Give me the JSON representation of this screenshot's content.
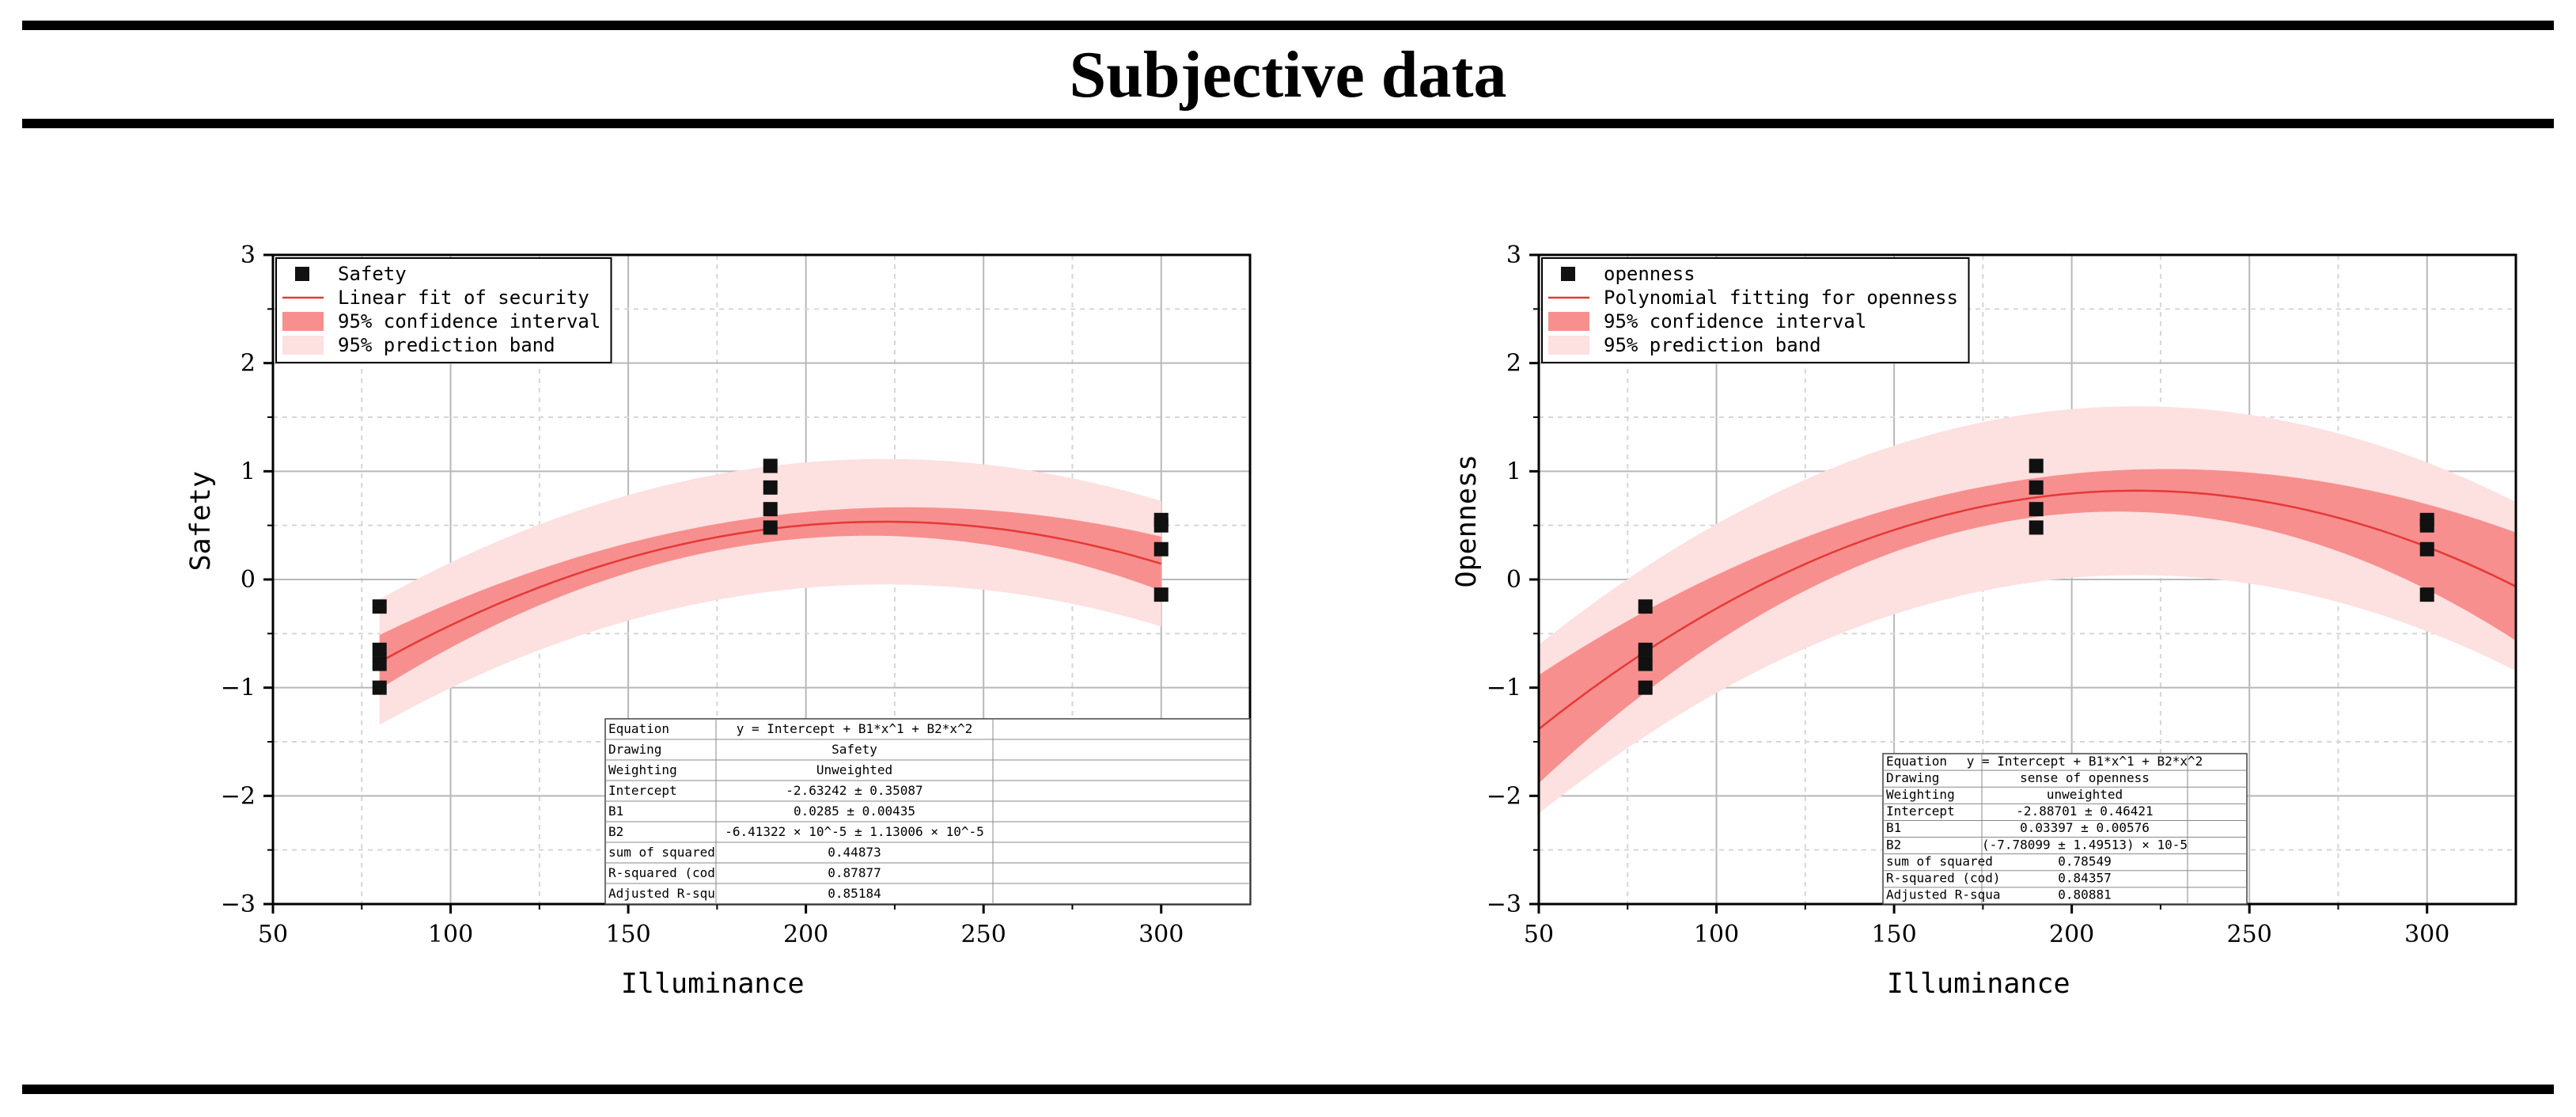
{
  "page": {
    "title": "Subjective data"
  },
  "chart_data": [
    {
      "type": "scatter",
      "name": "safety",
      "xlabel": "Illuminance",
      "ylabel": "Safety",
      "xlim": [
        50,
        325
      ],
      "ylim": [
        -3,
        3
      ],
      "xticks": [
        50,
        100,
        150,
        200,
        250,
        300
      ],
      "yticks": [
        -3,
        -2,
        -1,
        0,
        1,
        2,
        3
      ],
      "grid": true,
      "fit": {
        "b0": -2.63242,
        "b1": 0.0285,
        "b2": -6.41322e-05,
        "x_range": [
          80,
          300
        ]
      },
      "ci_band": {
        "width_min": 0.12,
        "width_max": 0.25,
        "color": "#f78f8f"
      },
      "pred_band": {
        "width": 0.58,
        "color": "#fde0e0"
      },
      "points": [
        {
          "x": 80,
          "y": -0.25
        },
        {
          "x": 80,
          "y": -0.65
        },
        {
          "x": 80,
          "y": -0.78
        },
        {
          "x": 80,
          "y": -1.0
        },
        {
          "x": 190,
          "y": 1.05
        },
        {
          "x": 190,
          "y": 0.85
        },
        {
          "x": 190,
          "y": 0.65
        },
        {
          "x": 190,
          "y": 0.48
        },
        {
          "x": 300,
          "y": 0.55
        },
        {
          "x": 300,
          "y": 0.5
        },
        {
          "x": 300,
          "y": 0.28
        },
        {
          "x": 300,
          "y": -0.14
        }
      ],
      "legend": {
        "position": "top-left",
        "items": [
          {
            "kind": "marker",
            "label": "Safety"
          },
          {
            "kind": "line",
            "label": "Linear fit of security",
            "color": "#e53935"
          },
          {
            "kind": "fill",
            "label": "95% confidence interval",
            "color": "#f78f8f"
          },
          {
            "kind": "fill",
            "label": "95% prediction band",
            "color": "#fde0e0"
          }
        ]
      },
      "stats_table": {
        "rows": [
          {
            "key": "Equation",
            "value": "y = Intercept + B1*x^1 + B2*x^2"
          },
          {
            "key": "Drawing",
            "value": "Safety"
          },
          {
            "key": "Weighting",
            "value": "Unweighted"
          },
          {
            "key": "Intercept",
            "value": "-2.63242 ± 0.35087"
          },
          {
            "key": "B1",
            "value": "0.0285 ± 0.00435"
          },
          {
            "key": "B2",
            "value": "-6.41322 × 10^-5 ± 1.13006 × 10^-5"
          },
          {
            "key": "sum of squared",
            "value": "0.44873"
          },
          {
            "key": "R-squared (cod",
            "value": "0.87877"
          },
          {
            "key": "Adjusted R-squ",
            "value": "0.85184"
          }
        ]
      }
    },
    {
      "type": "scatter",
      "name": "openness",
      "xlabel": "Illuminance",
      "ylabel": "Openness",
      "xlim": [
        50,
        325
      ],
      "ylim": [
        -3,
        3
      ],
      "xticks": [
        50,
        100,
        150,
        200,
        250,
        300
      ],
      "yticks": [
        -3,
        -2,
        -1,
        0,
        1,
        2,
        3
      ],
      "grid": true,
      "fit": {
        "b0": -2.88701,
        "b1": 0.03397,
        "b2": -7.78099e-05,
        "x_range": [
          50,
          325
        ]
      },
      "ci_band": {
        "width_min": 0.18,
        "width_max": 0.5,
        "color": "#f78f8f"
      },
      "pred_band": {
        "width": 0.78,
        "color": "#fde0e0"
      },
      "points": [
        {
          "x": 80,
          "y": -0.25
        },
        {
          "x": 80,
          "y": -0.65
        },
        {
          "x": 80,
          "y": -0.78
        },
        {
          "x": 80,
          "y": -1.0
        },
        {
          "x": 190,
          "y": 1.05
        },
        {
          "x": 190,
          "y": 0.85
        },
        {
          "x": 190,
          "y": 0.65
        },
        {
          "x": 190,
          "y": 0.48
        },
        {
          "x": 300,
          "y": 0.55
        },
        {
          "x": 300,
          "y": 0.5
        },
        {
          "x": 300,
          "y": 0.28
        },
        {
          "x": 300,
          "y": -0.14
        }
      ],
      "legend": {
        "position": "top-left",
        "items": [
          {
            "kind": "marker",
            "label": "openness"
          },
          {
            "kind": "line",
            "label": "Polynomial fitting for openness",
            "color": "#e53935"
          },
          {
            "kind": "fill",
            "label": "95% confidence interval",
            "color": "#f78f8f"
          },
          {
            "kind": "fill",
            "label": "95% prediction band",
            "color": "#fde0e0"
          }
        ]
      },
      "stats_table": {
        "rows": [
          {
            "key": "Equation",
            "value": "y = Intercept + B1*x^1 + B2*x^2"
          },
          {
            "key": "Drawing",
            "value": "sense of openness"
          },
          {
            "key": "Weighting",
            "value": "unweighted"
          },
          {
            "key": "Intercept",
            "value": "-2.88701 ± 0.46421"
          },
          {
            "key": "B1",
            "value": "0.03397 ± 0.00576"
          },
          {
            "key": "B2",
            "value": "(-7.78099 ± 1.49513) × 10-5"
          },
          {
            "key": "sum of squared",
            "value": "0.78549"
          },
          {
            "key": "R-squared (cod)",
            "value": "0.84357"
          },
          {
            "key": "Adjusted R-squa",
            "value": "0.80881"
          }
        ]
      }
    }
  ]
}
